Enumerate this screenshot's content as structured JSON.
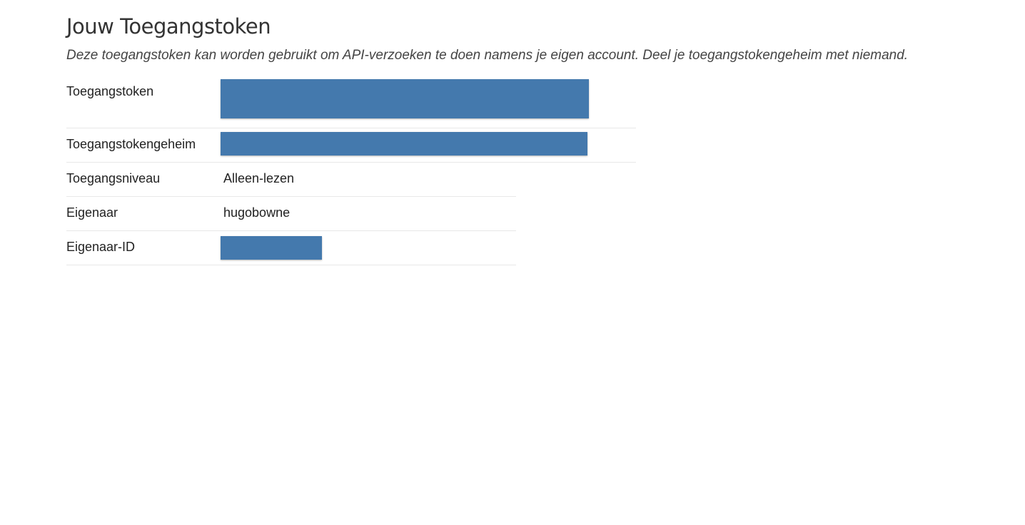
{
  "header": {
    "title": "Jouw Toegangstoken",
    "subtitle": "Deze toegangstoken kan worden gebruikt om API-verzoeken te doen namens je eigen account. Deel je toegangstokengeheim met niemand."
  },
  "table": {
    "rows": [
      [
        "Toegangstoken"
      ],
      [
        "Toegangstokengeheim"
      ],
      [
        "Toegangsniveau",
        "Alleen-lezen"
      ],
      [
        "Eigenaar",
        "hugobowne"
      ],
      [
        "Eigenaar-ID"
      ]
    ]
  }
}
